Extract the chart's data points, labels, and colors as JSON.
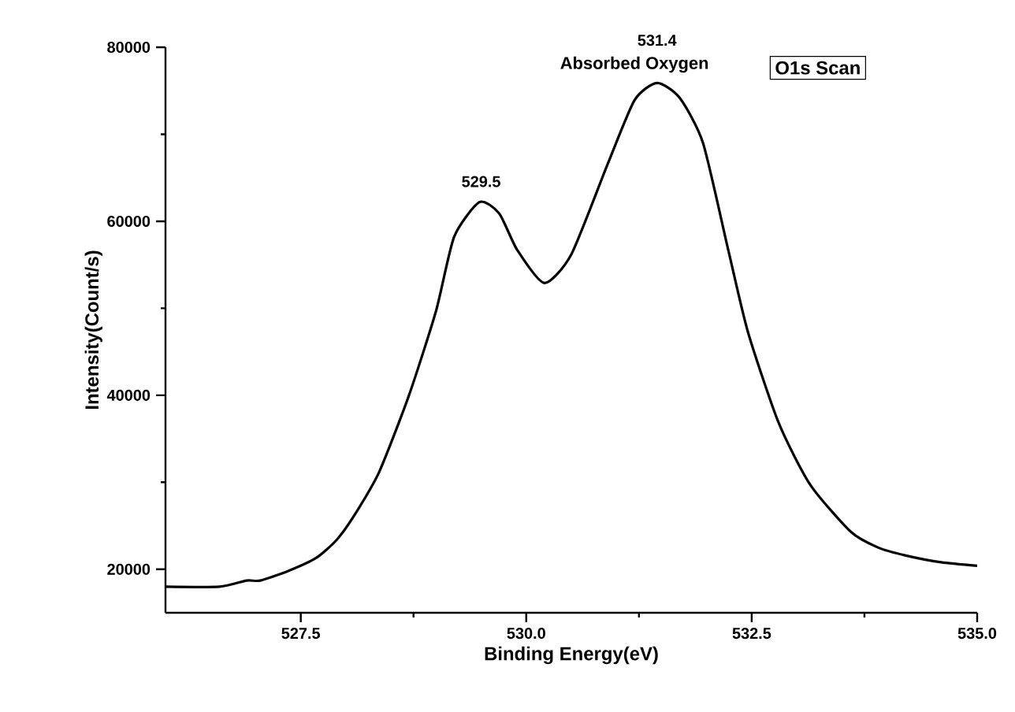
{
  "chart_data": {
    "type": "line",
    "title": "O1s Scan",
    "xlabel": "Binding Energy(eV)",
    "ylabel": "Intensity(Count/s)",
    "xlim": [
      526,
      535
    ],
    "ylim": [
      15000,
      80000
    ],
    "xticks": [
      527.5,
      {
        "value": 530,
        "label": "530.0"
      },
      532.5,
      {
        "value": 535,
        "label": "535.0"
      }
    ],
    "yticks": [
      20000,
      40000,
      60000,
      80000
    ],
    "annotations": [
      {
        "text": "529.5",
        "x": 529.5,
        "y": 62200
      },
      {
        "text": "531.4",
        "x": 531.45,
        "y": 75900
      },
      "Absorbed Oxygen"
    ],
    "series": [
      {
        "color": "#000000",
        "x": [
          526.0,
          526.6,
          526.9,
          527.05,
          527.36,
          527.67,
          527.9,
          528.1,
          528.37,
          528.7,
          529.0,
          529.2,
          529.48,
          529.7,
          529.9,
          530.2,
          530.5,
          530.9,
          531.2,
          531.45,
          531.7,
          531.96,
          532.24,
          532.46,
          532.8,
          533.15,
          533.6,
          533.9,
          534.2,
          534.6,
          535.0
        ],
        "values": [
          18000,
          18000,
          18700,
          18700,
          19800,
          21300,
          23400,
          26300,
          31200,
          40000,
          49700,
          58200,
          62200,
          60900,
          56700,
          52900,
          56200,
          66500,
          73900,
          75900,
          74200,
          69000,
          56700,
          47200,
          36800,
          29700,
          24300,
          22500,
          21600,
          20800,
          20400
        ]
      }
    ]
  }
}
